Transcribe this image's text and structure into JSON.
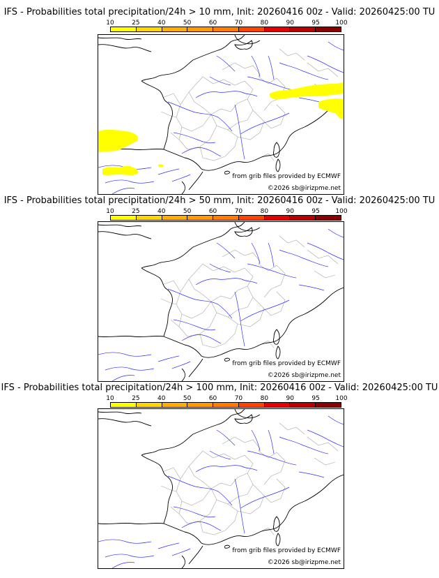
{
  "scale_ticks": [
    "10",
    "25",
    "40",
    "50",
    "60",
    "70",
    "80",
    "90",
    "95",
    "100"
  ],
  "scale_colors": [
    "#ffff00",
    "#ffd700",
    "#ffae00",
    "#ff9a00",
    "#ff7d00",
    "#ff4400",
    "#e60000",
    "#bb0000",
    "#8c0000"
  ],
  "colors": {
    "coastline": "#000000",
    "rivers": "#3030ff",
    "borders": "#a8a8a8",
    "precipitation": "#ffff00"
  },
  "panels": [
    {
      "title": "IFS - Probabilities total precipitation/24h > 10 mm, Init: 20260416 00z - Valid: 20260425:00 TU",
      "source_text": "from grib files provided by ECMWF",
      "copyright_text": "©2026 sb@irizpme.net"
    },
    {
      "title": "IFS - Probabilities total precipitation/24h > 50 mm, Init: 20260416 00z - Valid: 20260425:00 TU",
      "source_text": "from grib files provided by ECMWF",
      "copyright_text": "©2026 sb@irizpme.net"
    },
    {
      "title": "IFS - Probabilities total precipitation/24h > 100 mm, Init: 20260416 00z - Valid: 20260425:00 TU",
      "source_text": "from grib files provided by ECMWF",
      "copyright_text": "©2026 sb@irizpme.net"
    }
  ]
}
